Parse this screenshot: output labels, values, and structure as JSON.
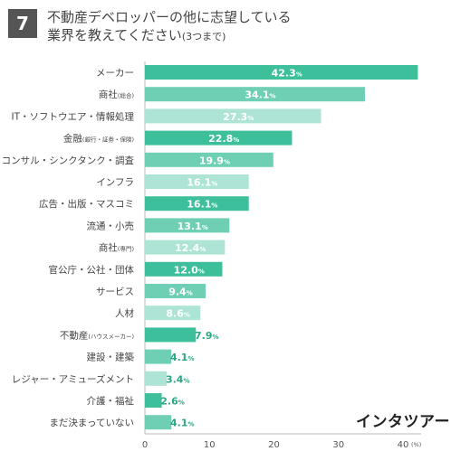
{
  "header": {
    "number": "7",
    "title_line1": "不動産デベロッパーの他に志望している",
    "title_line2": "業界を教えてください",
    "title_suffix": "(3つまで)"
  },
  "brand": {
    "logo_text": "インタツアー"
  },
  "colors": {
    "dark": "#3dbf9c",
    "medium": "#6fcfb5",
    "light": "#aee4d5",
    "axis": "#bbbbbb",
    "tick_text": "#555555"
  },
  "chart_data": {
    "type": "bar",
    "orientation": "horizontal",
    "categories": [
      "メーカー",
      "商社",
      "IT・ソフトウエア・情報処理",
      "金融",
      "コンサル・シンクタンク・調査",
      "インフラ",
      "広告・出版・マスコミ",
      "流通・小売",
      "商社",
      "官公庁・公社・団体",
      "サービス",
      "人材",
      "不動産",
      "建設・建築",
      "レジャー・アミューズメント",
      "介護・福祉",
      "まだ決まっていない"
    ],
    "category_notes": [
      "",
      "(総合)",
      "",
      "(銀行・証券・保険)",
      "",
      "",
      "",
      "",
      "(専門)",
      "",
      "",
      "",
      "(ハウスメーカー)",
      "",
      "",
      "",
      ""
    ],
    "values": [
      42.3,
      34.1,
      27.3,
      22.8,
      19.9,
      16.1,
      16.1,
      13.1,
      12.4,
      12.0,
      9.4,
      8.6,
      7.9,
      4.1,
      3.4,
      2.6,
      4.1
    ],
    "value_labels": [
      "42.3",
      "34.1",
      "27.3",
      "22.8",
      "19.9",
      "16.1",
      "16.1",
      "13.1",
      "12.4",
      "12.0",
      "9.4",
      "8.6",
      "7.9",
      "4.1",
      "3.4",
      "2.6",
      "4.1"
    ],
    "value_unit": "%",
    "bar_shades": [
      "dark",
      "medium",
      "light",
      "dark",
      "medium",
      "light",
      "dark",
      "medium",
      "light",
      "dark",
      "medium",
      "light",
      "dark",
      "medium",
      "light",
      "dark",
      "medium"
    ],
    "x_ticks": [
      "0",
      "10",
      "20",
      "30",
      "40"
    ],
    "x_unit_label": "(%)",
    "xlim": [
      0,
      42.3
    ]
  }
}
